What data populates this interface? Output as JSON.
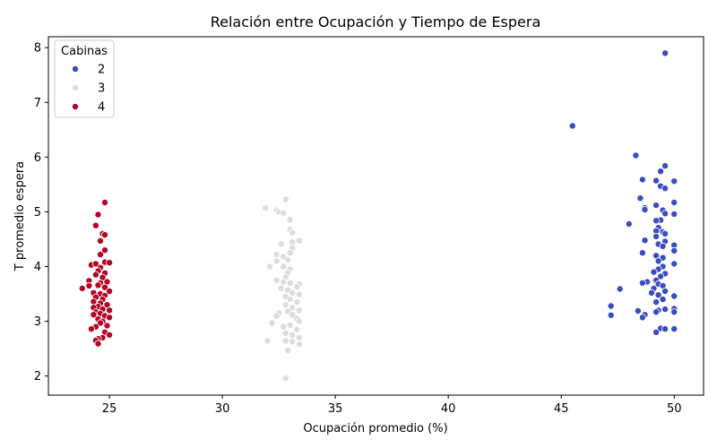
{
  "chart_data": {
    "type": "scatter",
    "title": "Relación entre Ocupación y Tiempo de Espera",
    "xlabel": "Ocupación promedio (%)",
    "ylabel": "T promedio espera",
    "xlim": [
      22.3,
      51.3
    ],
    "ylim": [
      1.65,
      8.2
    ],
    "xticks": [
      25,
      30,
      35,
      40,
      45,
      50
    ],
    "yticks": [
      2,
      3,
      4,
      5,
      6,
      7,
      8
    ],
    "grid": false,
    "legend": {
      "title": "Cabinas",
      "position": "top-left"
    },
    "series": [
      {
        "name": "2",
        "color": "#3b4cc0",
        "points": [
          [
            49.6,
            7.9
          ],
          [
            45.5,
            6.57
          ],
          [
            48.3,
            6.03
          ],
          [
            49.6,
            5.84
          ],
          [
            49.4,
            5.74
          ],
          [
            48.6,
            5.59
          ],
          [
            49.2,
            5.57
          ],
          [
            50.0,
            5.56
          ],
          [
            49.4,
            5.47
          ],
          [
            49.6,
            5.43
          ],
          [
            48.5,
            5.25
          ],
          [
            50.0,
            5.17
          ],
          [
            49.2,
            5.12
          ],
          [
            48.7,
            5.07
          ],
          [
            49.5,
            5.03
          ],
          [
            48.7,
            5.04
          ],
          [
            49.6,
            4.97
          ],
          [
            50.0,
            4.96
          ],
          [
            49.4,
            4.85
          ],
          [
            49.2,
            4.84
          ],
          [
            48.0,
            4.78
          ],
          [
            49.3,
            4.71
          ],
          [
            49.5,
            4.63
          ],
          [
            49.2,
            4.65
          ],
          [
            49.6,
            4.6
          ],
          [
            49.2,
            4.55
          ],
          [
            48.7,
            4.48
          ],
          [
            49.6,
            4.46
          ],
          [
            49.3,
            4.41
          ],
          [
            50.0,
            4.39
          ],
          [
            49.5,
            4.37
          ],
          [
            50.0,
            4.29
          ],
          [
            48.6,
            4.25
          ],
          [
            49.2,
            4.2
          ],
          [
            49.5,
            4.16
          ],
          [
            49.3,
            4.1
          ],
          [
            50.0,
            4.05
          ],
          [
            49.5,
            4.0
          ],
          [
            49.3,
            3.95
          ],
          [
            49.1,
            3.9
          ],
          [
            49.6,
            3.87
          ],
          [
            49.4,
            3.82
          ],
          [
            49.2,
            3.75
          ],
          [
            48.8,
            3.72
          ],
          [
            49.3,
            3.68
          ],
          [
            48.6,
            3.7
          ],
          [
            49.5,
            3.65
          ],
          [
            49.1,
            3.6
          ],
          [
            47.6,
            3.59
          ],
          [
            49.6,
            3.55
          ],
          [
            49.0,
            3.52
          ],
          [
            49.3,
            3.48
          ],
          [
            50.0,
            3.46
          ],
          [
            49.5,
            3.4
          ],
          [
            49.2,
            3.35
          ],
          [
            47.2,
            3.28
          ],
          [
            49.6,
            3.22
          ],
          [
            49.3,
            3.2
          ],
          [
            50.0,
            3.23
          ],
          [
            48.4,
            3.19
          ],
          [
            49.2,
            3.17
          ],
          [
            50.0,
            3.17
          ],
          [
            48.7,
            3.12
          ],
          [
            47.2,
            3.11
          ],
          [
            48.6,
            3.07
          ],
          [
            49.4,
            2.87
          ],
          [
            49.6,
            2.86
          ],
          [
            50.0,
            2.86
          ],
          [
            49.2,
            2.8
          ]
        ]
      },
      {
        "name": "3",
        "color": "#dddcdc",
        "points": [
          [
            32.8,
            5.23
          ],
          [
            31.9,
            5.07
          ],
          [
            32.4,
            5.03
          ],
          [
            32.5,
            5.0
          ],
          [
            32.7,
            4.98
          ],
          [
            33.0,
            4.86
          ],
          [
            33.0,
            4.68
          ],
          [
            33.1,
            4.62
          ],
          [
            33.4,
            4.47
          ],
          [
            33.1,
            4.45
          ],
          [
            32.6,
            4.41
          ],
          [
            33.1,
            4.34
          ],
          [
            33.0,
            4.25
          ],
          [
            32.4,
            4.22
          ],
          [
            32.7,
            4.18
          ],
          [
            32.9,
            4.12
          ],
          [
            32.4,
            4.1
          ],
          [
            32.1,
            4.0
          ],
          [
            32.7,
            4.0
          ],
          [
            33.0,
            3.95
          ],
          [
            32.9,
            3.88
          ],
          [
            32.8,
            3.8
          ],
          [
            32.4,
            3.75
          ],
          [
            32.7,
            3.72
          ],
          [
            33.0,
            3.7
          ],
          [
            33.4,
            3.68
          ],
          [
            33.3,
            3.63
          ],
          [
            32.6,
            3.6
          ],
          [
            32.9,
            3.57
          ],
          [
            33.1,
            3.52
          ],
          [
            33.4,
            3.49
          ],
          [
            32.8,
            3.45
          ],
          [
            33.0,
            3.4
          ],
          [
            33.3,
            3.35
          ],
          [
            32.8,
            3.3
          ],
          [
            33.1,
            3.25
          ],
          [
            33.4,
            3.2
          ],
          [
            32.9,
            3.18
          ],
          [
            32.5,
            3.15
          ],
          [
            33.1,
            3.12
          ],
          [
            32.4,
            3.1
          ],
          [
            33.3,
            3.05
          ],
          [
            33.4,
            3.0
          ],
          [
            32.2,
            2.97
          ],
          [
            33.0,
            2.93
          ],
          [
            32.7,
            2.9
          ],
          [
            33.3,
            2.85
          ],
          [
            32.8,
            2.78
          ],
          [
            33.1,
            2.75
          ],
          [
            33.4,
            2.7
          ],
          [
            32.0,
            2.64
          ],
          [
            32.8,
            2.64
          ],
          [
            33.1,
            2.63
          ],
          [
            33.4,
            2.58
          ],
          [
            32.9,
            2.47
          ],
          [
            32.8,
            1.96
          ]
        ]
      },
      {
        "name": "4",
        "color": "#b40426",
        "points": [
          [
            24.8,
            5.17
          ],
          [
            24.5,
            4.95
          ],
          [
            24.4,
            4.75
          ],
          [
            24.7,
            4.6
          ],
          [
            24.8,
            4.58
          ],
          [
            24.6,
            4.47
          ],
          [
            24.8,
            4.3
          ],
          [
            24.6,
            4.22
          ],
          [
            24.8,
            4.08
          ],
          [
            25.0,
            4.07
          ],
          [
            24.2,
            4.03
          ],
          [
            24.4,
            4.05
          ],
          [
            24.6,
            3.98
          ],
          [
            24.5,
            3.92
          ],
          [
            24.8,
            3.88
          ],
          [
            24.4,
            3.85
          ],
          [
            24.7,
            3.8
          ],
          [
            24.1,
            3.74
          ],
          [
            24.9,
            3.72
          ],
          [
            24.6,
            3.7
          ],
          [
            24.5,
            3.66
          ],
          [
            24.1,
            3.65
          ],
          [
            24.8,
            3.62
          ],
          [
            23.8,
            3.6
          ],
          [
            25.0,
            3.55
          ],
          [
            24.3,
            3.52
          ],
          [
            24.6,
            3.5
          ],
          [
            24.8,
            3.47
          ],
          [
            24.4,
            3.44
          ],
          [
            24.7,
            3.4
          ],
          [
            24.3,
            3.36
          ],
          [
            24.6,
            3.33
          ],
          [
            24.9,
            3.3
          ],
          [
            24.5,
            3.27
          ],
          [
            24.3,
            3.25
          ],
          [
            24.7,
            3.22
          ],
          [
            25.0,
            3.2
          ],
          [
            24.4,
            3.17
          ],
          [
            24.6,
            3.14
          ],
          [
            24.3,
            3.12
          ],
          [
            24.8,
            3.1
          ],
          [
            25.0,
            3.07
          ],
          [
            24.5,
            3.04
          ],
          [
            24.7,
            3.0
          ],
          [
            24.6,
            2.97
          ],
          [
            24.9,
            2.92
          ],
          [
            24.4,
            2.9
          ],
          [
            24.2,
            2.86
          ],
          [
            24.8,
            2.8
          ],
          [
            25.0,
            2.75
          ],
          [
            24.7,
            2.7
          ],
          [
            24.5,
            2.68
          ],
          [
            24.4,
            2.65
          ],
          [
            24.5,
            2.59
          ]
        ]
      }
    ]
  }
}
